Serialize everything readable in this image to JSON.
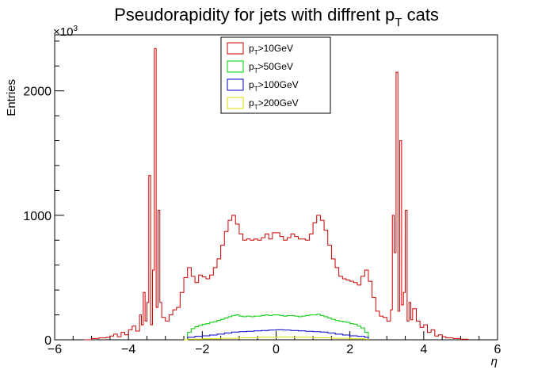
{
  "chart_data": {
    "type": "histogram-step",
    "title": {
      "main": "Pseudorapidity for jets with diffrent p",
      "sub": "T",
      "suffix": "  cats"
    },
    "xlabel": "η",
    "ylabel": "Entries",
    "y_multiplier_label": "×10",
    "y_multiplier_exp": "3",
    "xlim": [
      -6,
      6
    ],
    "ylim": [
      0,
      2450
    ],
    "x_ticks": [
      -6,
      -4,
      -2,
      0,
      2,
      4,
      6
    ],
    "x_tick_labels": [
      "−6",
      "−4",
      "−2",
      "0",
      "2",
      "4",
      "6"
    ],
    "y_ticks": [
      0,
      1000,
      2000
    ],
    "y_tick_labels": [
      "0",
      "1000",
      "2000"
    ],
    "legend_position": "top-center",
    "legend": [
      {
        "prefix": "p",
        "sub": "T",
        "suffix": ">10GeV",
        "color": "#cc0000"
      },
      {
        "prefix": "p",
        "sub": "T",
        "suffix": ">50GeV",
        "color": "#00cc00"
      },
      {
        "prefix": "p",
        "sub": "T",
        "suffix": ">100GeV",
        "color": "#0000cc"
      },
      {
        "prefix": "p",
        "sub": "T",
        "suffix": ">200GeV",
        "color": "#dddd00"
      }
    ],
    "series": [
      {
        "label_index": 0,
        "color": "#cc0000",
        "points": [
          [
            -5.2,
            0
          ],
          [
            -5.0,
            10
          ],
          [
            -4.8,
            15
          ],
          [
            -4.6,
            20
          ],
          [
            -4.5,
            30
          ],
          [
            -4.4,
            45
          ],
          [
            -4.3,
            25
          ],
          [
            -4.2,
            60
          ],
          [
            -4.1,
            40
          ],
          [
            -4.0,
            80
          ],
          [
            -3.9,
            110
          ],
          [
            -3.8,
            70
          ],
          [
            -3.7,
            200
          ],
          [
            -3.65,
            120
          ],
          [
            -3.6,
            380
          ],
          [
            -3.55,
            150
          ],
          [
            -3.5,
            300
          ],
          [
            -3.45,
            1320
          ],
          [
            -3.4,
            120
          ],
          [
            -3.35,
            560
          ],
          [
            -3.3,
            2340
          ],
          [
            -3.25,
            260
          ],
          [
            -3.2,
            1040
          ],
          [
            -3.15,
            300
          ],
          [
            -3.1,
            180
          ],
          [
            -3.0,
            150
          ],
          [
            -2.9,
            200
          ],
          [
            -2.8,
            240
          ],
          [
            -2.7,
            260
          ],
          [
            -2.6,
            380
          ],
          [
            -2.5,
            500
          ],
          [
            -2.4,
            580
          ],
          [
            -2.3,
            510
          ],
          [
            -2.2,
            460
          ],
          [
            -2.1,
            520
          ],
          [
            -2.0,
            505
          ],
          [
            -1.9,
            490
          ],
          [
            -1.8,
            520
          ],
          [
            -1.7,
            580
          ],
          [
            -1.6,
            650
          ],
          [
            -1.5,
            760
          ],
          [
            -1.4,
            870
          ],
          [
            -1.3,
            960
          ],
          [
            -1.2,
            1000
          ],
          [
            -1.1,
            930
          ],
          [
            -1.0,
            850
          ],
          [
            -0.9,
            800
          ],
          [
            -0.8,
            810
          ],
          [
            -0.7,
            800
          ],
          [
            -0.6,
            810
          ],
          [
            -0.5,
            800
          ],
          [
            -0.4,
            820
          ],
          [
            -0.3,
            850
          ],
          [
            -0.2,
            810
          ],
          [
            -0.1,
            860
          ],
          [
            0.0,
            860
          ],
          [
            0.1,
            830
          ],
          [
            0.2,
            800
          ],
          [
            0.3,
            820
          ],
          [
            0.4,
            850
          ],
          [
            0.5,
            830
          ],
          [
            0.6,
            810
          ],
          [
            0.7,
            810
          ],
          [
            0.8,
            800
          ],
          [
            0.9,
            850
          ],
          [
            1.0,
            940
          ],
          [
            1.1,
            1000
          ],
          [
            1.2,
            960
          ],
          [
            1.3,
            880
          ],
          [
            1.4,
            760
          ],
          [
            1.5,
            650
          ],
          [
            1.6,
            580
          ],
          [
            1.7,
            510
          ],
          [
            1.8,
            490
          ],
          [
            1.9,
            480
          ],
          [
            2.0,
            470
          ],
          [
            2.1,
            460
          ],
          [
            2.2,
            440
          ],
          [
            2.3,
            510
          ],
          [
            2.4,
            560
          ],
          [
            2.5,
            470
          ],
          [
            2.6,
            340
          ],
          [
            2.7,
            230
          ],
          [
            2.8,
            190
          ],
          [
            2.9,
            180
          ],
          [
            3.0,
            150
          ],
          [
            3.1,
            240
          ],
          [
            3.15,
            1000
          ],
          [
            3.2,
            700
          ],
          [
            3.25,
            2150
          ],
          [
            3.3,
            230
          ],
          [
            3.35,
            1600
          ],
          [
            3.4,
            280
          ],
          [
            3.45,
            380
          ],
          [
            3.5,
            1040
          ],
          [
            3.55,
            150
          ],
          [
            3.6,
            300
          ],
          [
            3.65,
            160
          ],
          [
            3.7,
            250
          ],
          [
            3.8,
            150
          ],
          [
            3.9,
            100
          ],
          [
            4.0,
            120
          ],
          [
            4.1,
            60
          ],
          [
            4.2,
            80
          ],
          [
            4.3,
            30
          ],
          [
            4.4,
            40
          ],
          [
            4.5,
            25
          ],
          [
            4.6,
            15
          ],
          [
            4.8,
            10
          ],
          [
            5.0,
            5
          ],
          [
            5.2,
            0
          ]
        ]
      },
      {
        "label_index": 1,
        "color": "#00cc00",
        "points": [
          [
            -2.5,
            0
          ],
          [
            -2.4,
            60
          ],
          [
            -2.3,
            90
          ],
          [
            -2.2,
            105
          ],
          [
            -2.1,
            115
          ],
          [
            -2.0,
            125
          ],
          [
            -1.9,
            130
          ],
          [
            -1.8,
            140
          ],
          [
            -1.7,
            145
          ],
          [
            -1.6,
            155
          ],
          [
            -1.5,
            165
          ],
          [
            -1.4,
            175
          ],
          [
            -1.3,
            185
          ],
          [
            -1.2,
            195
          ],
          [
            -1.1,
            200
          ],
          [
            -1.0,
            190
          ],
          [
            -0.9,
            185
          ],
          [
            -0.8,
            190
          ],
          [
            -0.7,
            185
          ],
          [
            -0.6,
            190
          ],
          [
            -0.5,
            190
          ],
          [
            -0.4,
            195
          ],
          [
            -0.3,
            200
          ],
          [
            -0.2,
            195
          ],
          [
            -0.1,
            200
          ],
          [
            0.0,
            200
          ],
          [
            0.1,
            195
          ],
          [
            0.2,
            190
          ],
          [
            0.3,
            195
          ],
          [
            0.4,
            195
          ],
          [
            0.5,
            190
          ],
          [
            0.6,
            185
          ],
          [
            0.7,
            190
          ],
          [
            0.8,
            195
          ],
          [
            0.9,
            200
          ],
          [
            1.0,
            200
          ],
          [
            1.1,
            205
          ],
          [
            1.2,
            195
          ],
          [
            1.3,
            185
          ],
          [
            1.4,
            175
          ],
          [
            1.5,
            165
          ],
          [
            1.6,
            155
          ],
          [
            1.7,
            150
          ],
          [
            1.8,
            145
          ],
          [
            1.9,
            140
          ],
          [
            2.0,
            130
          ],
          [
            2.1,
            125
          ],
          [
            2.2,
            110
          ],
          [
            2.3,
            95
          ],
          [
            2.4,
            60
          ],
          [
            2.5,
            0
          ]
        ]
      },
      {
        "label_index": 2,
        "color": "#0000cc",
        "points": [
          [
            -2.5,
            0
          ],
          [
            -2.4,
            20
          ],
          [
            -2.2,
            28
          ],
          [
            -2.0,
            32
          ],
          [
            -1.8,
            38
          ],
          [
            -1.6,
            45
          ],
          [
            -1.4,
            55
          ],
          [
            -1.2,
            62
          ],
          [
            -1.0,
            65
          ],
          [
            -0.8,
            68
          ],
          [
            -0.6,
            72
          ],
          [
            -0.4,
            75
          ],
          [
            -0.2,
            78
          ],
          [
            0.0,
            80
          ],
          [
            0.2,
            78
          ],
          [
            0.4,
            75
          ],
          [
            0.6,
            72
          ],
          [
            0.8,
            68
          ],
          [
            1.0,
            65
          ],
          [
            1.2,
            62
          ],
          [
            1.4,
            55
          ],
          [
            1.6,
            45
          ],
          [
            1.8,
            38
          ],
          [
            2.0,
            32
          ],
          [
            2.2,
            28
          ],
          [
            2.4,
            20
          ],
          [
            2.5,
            0
          ]
        ]
      },
      {
        "label_index": 3,
        "color": "#dddd00",
        "points": [
          [
            -2.5,
            0
          ],
          [
            -2.4,
            5
          ],
          [
            -2.0,
            8
          ],
          [
            -1.5,
            12
          ],
          [
            -1.0,
            16
          ],
          [
            -0.5,
            20
          ],
          [
            0.0,
            22
          ],
          [
            0.5,
            20
          ],
          [
            1.0,
            16
          ],
          [
            1.5,
            12
          ],
          [
            2.0,
            8
          ],
          [
            2.4,
            5
          ],
          [
            2.5,
            0
          ]
        ]
      }
    ]
  }
}
